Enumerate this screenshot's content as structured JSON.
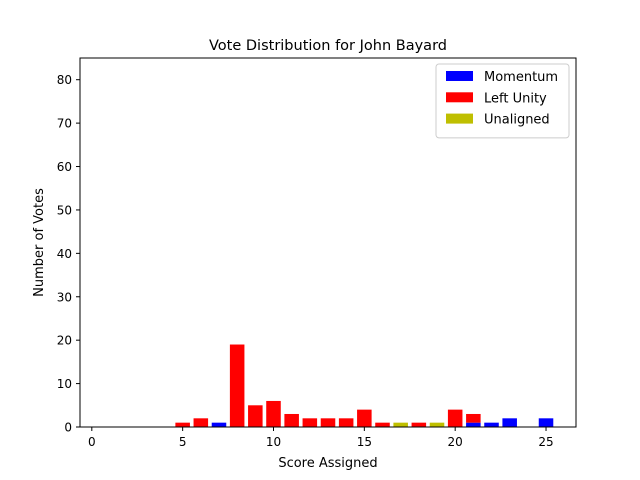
{
  "chart_data": {
    "type": "bar",
    "title": "Vote Distribution for John Bayard",
    "xlabel": "Score Assigned",
    "ylabel": "Number of Votes",
    "xlim": [
      -0.65,
      26.65
    ],
    "ylim": [
      0,
      85
    ],
    "xticks": [
      0,
      5,
      10,
      15,
      20,
      25
    ],
    "yticks": [
      0,
      10,
      20,
      30,
      40,
      50,
      60,
      70,
      80
    ],
    "grid": false,
    "legend_position": "top-right",
    "stacked": true,
    "series": [
      {
        "name": "Momentum",
        "color": "#0000ff",
        "x": [
          7,
          21,
          22,
          23,
          25
        ],
        "values": [
          1,
          1,
          1,
          2,
          2
        ]
      },
      {
        "name": "Left Unity",
        "color": "#ff0000",
        "x": [
          5,
          6,
          8,
          9,
          10,
          11,
          12,
          13,
          14,
          15,
          16,
          18,
          20,
          21
        ],
        "values": [
          1,
          2,
          19,
          5,
          6,
          3,
          2,
          2,
          2,
          4,
          1,
          1,
          4,
          2
        ]
      },
      {
        "name": "Unaligned",
        "color": "#bfbf00",
        "x": [
          17,
          19
        ],
        "values": [
          1,
          1
        ]
      }
    ]
  }
}
